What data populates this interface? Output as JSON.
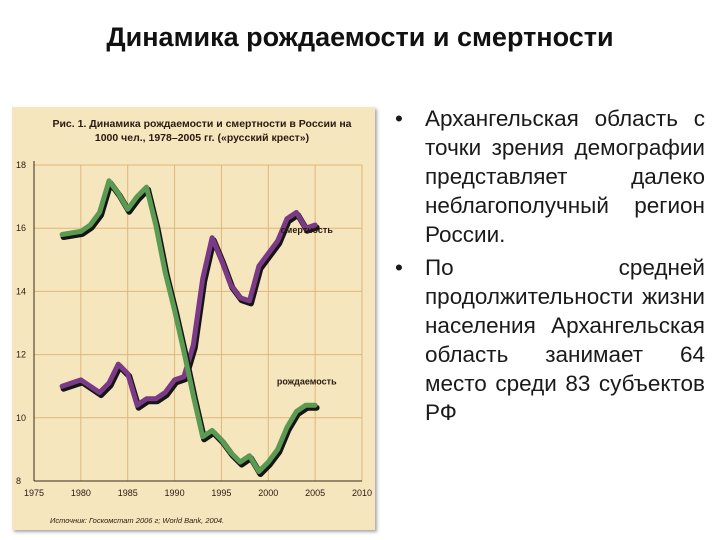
{
  "slide": {
    "title": "Динамика рождаемости и смертности"
  },
  "chart_data": {
    "type": "line",
    "title": "Рис. 1. Динамика рождаемости и смертности в России на 1000 чел., 1978–2005 гг. («русский крест»)",
    "source": "Источник: Госкомстат 2006 г; World Bank, 2004.",
    "x_ticks": [
      "1975",
      "1980",
      "1985",
      "1990",
      "1995",
      "2000",
      "2005",
      "2010"
    ],
    "y_ticks": [
      "8",
      "10",
      "12",
      "14",
      "16",
      "18"
    ],
    "xlim": [
      1975,
      2010
    ],
    "ylim": [
      8,
      18
    ],
    "grid": true,
    "series": [
      {
        "name": "смертность",
        "color": "#7a3a86",
        "x": [
          1978,
          1980,
          1981,
          1982,
          1983,
          1984,
          1985,
          1986,
          1987,
          1988,
          1989,
          1990,
          1991,
          1992,
          1993,
          1994,
          1995,
          1996,
          1997,
          1998,
          1999,
          2000,
          2001,
          2002,
          2003,
          2004,
          2005
        ],
        "values": [
          11.0,
          11.2,
          11.0,
          10.8,
          11.1,
          11.7,
          11.4,
          10.4,
          10.6,
          10.6,
          10.8,
          11.2,
          11.3,
          12.3,
          14.4,
          15.7,
          15.0,
          14.2,
          13.8,
          13.7,
          14.8,
          15.2,
          15.6,
          16.3,
          16.5,
          16.0,
          16.1
        ]
      },
      {
        "name": "рождаемость",
        "color": "#5a9a52",
        "x": [
          1978,
          1980,
          1981,
          1982,
          1983,
          1984,
          1985,
          1986,
          1987,
          1988,
          1989,
          1990,
          1991,
          1992,
          1993,
          1994,
          1995,
          1996,
          1997,
          1998,
          1999,
          2000,
          2001,
          2002,
          2003,
          2004,
          2005
        ],
        "values": [
          15.8,
          15.9,
          16.1,
          16.5,
          17.5,
          17.1,
          16.6,
          17.0,
          17.3,
          16.1,
          14.6,
          13.4,
          12.1,
          10.7,
          9.4,
          9.6,
          9.3,
          8.9,
          8.6,
          8.8,
          8.3,
          8.6,
          9.0,
          9.7,
          10.2,
          10.4,
          10.4
        ]
      }
    ]
  },
  "bullets": [
    "Архангельская область с точки зрения демографии представляет далеко неблагополучный регион России.",
    "По средней продолжительности жизни населения Архангельская область занимает 64 место среди 83 субъектов РФ"
  ],
  "bullet_symbol": "•"
}
